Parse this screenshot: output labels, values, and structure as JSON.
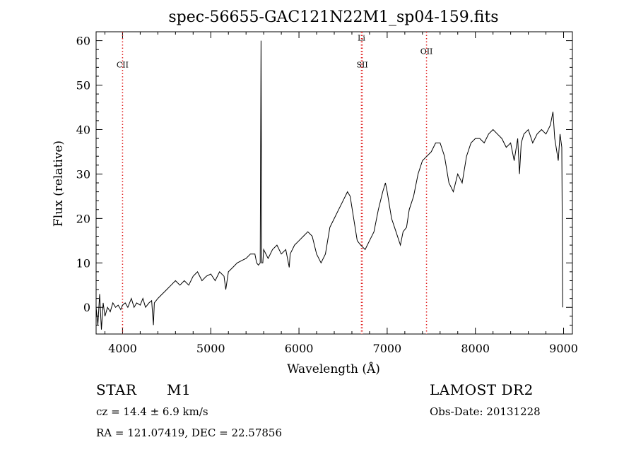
{
  "chart_data": {
    "type": "line",
    "title": "spec-56655-GAC121N22M1_sp04-159.fits",
    "xlabel": "Wavelength (Å)",
    "ylabel": "Flux (relative)",
    "xlim": [
      3700,
      9100
    ],
    "ylim": [
      -6,
      62
    ],
    "xticks": [
      4000,
      5000,
      6000,
      7000,
      8000,
      9000
    ],
    "yticks": [
      0,
      10,
      20,
      30,
      40,
      50,
      60
    ],
    "grid": false,
    "line_color": "#000000",
    "marker_color": "#e02020",
    "series": [
      {
        "values": [
          [
            3700,
            0
          ],
          [
            3720,
            -4
          ],
          [
            3740,
            3
          ],
          [
            3760,
            -5
          ],
          [
            3780,
            1
          ],
          [
            3800,
            -2
          ],
          [
            3830,
            0
          ],
          [
            3860,
            -1
          ],
          [
            3890,
            1
          ],
          [
            3920,
            0
          ],
          [
            3950,
            0.5
          ],
          [
            3980,
            -0.5
          ],
          [
            4000,
            0.5
          ],
          [
            4030,
            1
          ],
          [
            4060,
            0
          ],
          [
            4100,
            2
          ],
          [
            4130,
            0
          ],
          [
            4160,
            1
          ],
          [
            4200,
            0.5
          ],
          [
            4230,
            2
          ],
          [
            4260,
            0
          ],
          [
            4300,
            1
          ],
          [
            4330,
            1.5
          ],
          [
            4350,
            -4
          ],
          [
            4360,
            1
          ],
          [
            4400,
            2
          ],
          [
            4450,
            3
          ],
          [
            4500,
            4
          ],
          [
            4550,
            5
          ],
          [
            4600,
            6
          ],
          [
            4650,
            5
          ],
          [
            4700,
            6
          ],
          [
            4750,
            5
          ],
          [
            4800,
            7
          ],
          [
            4850,
            8
          ],
          [
            4900,
            6
          ],
          [
            4950,
            7
          ],
          [
            5000,
            7.5
          ],
          [
            5050,
            6
          ],
          [
            5100,
            8
          ],
          [
            5150,
            7
          ],
          [
            5170,
            4
          ],
          [
            5200,
            8
          ],
          [
            5250,
            9
          ],
          [
            5300,
            10
          ],
          [
            5350,
            10.5
          ],
          [
            5400,
            11
          ],
          [
            5450,
            12
          ],
          [
            5500,
            12
          ],
          [
            5520,
            10
          ],
          [
            5540,
            9.5
          ],
          [
            5560,
            10
          ],
          [
            5570,
            60
          ],
          [
            5577,
            10
          ],
          [
            5590,
            10
          ],
          [
            5600,
            13
          ],
          [
            5650,
            11
          ],
          [
            5700,
            13
          ],
          [
            5750,
            14
          ],
          [
            5800,
            12
          ],
          [
            5850,
            13
          ],
          [
            5890,
            9
          ],
          [
            5900,
            12
          ],
          [
            5950,
            14
          ],
          [
            6000,
            15
          ],
          [
            6050,
            16
          ],
          [
            6100,
            17
          ],
          [
            6150,
            16
          ],
          [
            6200,
            12
          ],
          [
            6250,
            10
          ],
          [
            6300,
            12
          ],
          [
            6350,
            18
          ],
          [
            6400,
            20
          ],
          [
            6450,
            22
          ],
          [
            6500,
            24
          ],
          [
            6550,
            26
          ],
          [
            6580,
            25
          ],
          [
            6620,
            20
          ],
          [
            6660,
            15
          ],
          [
            6700,
            14
          ],
          [
            6750,
            13
          ],
          [
            6800,
            15
          ],
          [
            6850,
            17
          ],
          [
            6900,
            22
          ],
          [
            6950,
            26
          ],
          [
            6980,
            28
          ],
          [
            7000,
            26
          ],
          [
            7050,
            20
          ],
          [
            7100,
            17
          ],
          [
            7150,
            14
          ],
          [
            7180,
            17
          ],
          [
            7220,
            18
          ],
          [
            7250,
            22
          ],
          [
            7300,
            25
          ],
          [
            7350,
            30
          ],
          [
            7400,
            33
          ],
          [
            7450,
            34
          ],
          [
            7500,
            35
          ],
          [
            7550,
            37
          ],
          [
            7600,
            37
          ],
          [
            7650,
            34
          ],
          [
            7700,
            28
          ],
          [
            7750,
            26
          ],
          [
            7800,
            30
          ],
          [
            7850,
            28
          ],
          [
            7900,
            34
          ],
          [
            7950,
            37
          ],
          [
            8000,
            38
          ],
          [
            8050,
            38
          ],
          [
            8100,
            37
          ],
          [
            8150,
            39
          ],
          [
            8200,
            40
          ],
          [
            8250,
            39
          ],
          [
            8300,
            38
          ],
          [
            8350,
            36
          ],
          [
            8400,
            37
          ],
          [
            8440,
            33
          ],
          [
            8480,
            38
          ],
          [
            8500,
            30
          ],
          [
            8520,
            37
          ],
          [
            8550,
            39
          ],
          [
            8600,
            40
          ],
          [
            8650,
            37
          ],
          [
            8700,
            39
          ],
          [
            8750,
            40
          ],
          [
            8800,
            39
          ],
          [
            8850,
            41
          ],
          [
            8880,
            44
          ],
          [
            8900,
            38
          ],
          [
            8940,
            33
          ],
          [
            8960,
            39
          ],
          [
            8980,
            36
          ],
          [
            8990,
            0
          ]
        ]
      }
    ],
    "line_markers": [
      {
        "label": "CII",
        "x": 4000,
        "label_y": 54
      },
      {
        "label": "SII",
        "x": 6717,
        "label_y": 54
      },
      {
        "label": "Li",
        "x": 6708,
        "label_y": 60
      },
      {
        "label": "OII",
        "x": 7446,
        "label_y": 57
      }
    ]
  },
  "info": {
    "object_class": "STAR",
    "subclass": "M1",
    "survey": "LAMOST DR2",
    "redshift": "cz = 14.4 ± 6.9 km/s",
    "obs_date": "Obs-Date: 20131228",
    "coords": "RA = 121.07419, DEC =  22.57856"
  }
}
